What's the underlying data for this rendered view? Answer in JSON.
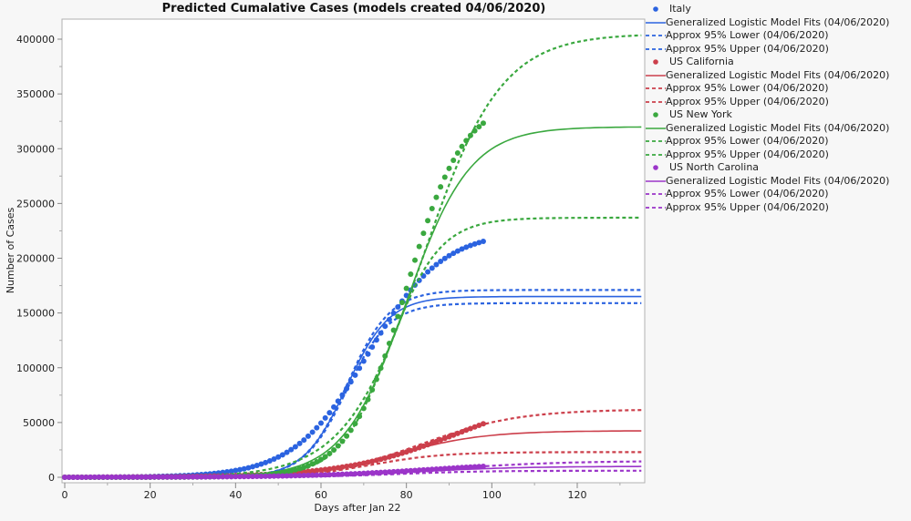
{
  "chart_data": {
    "type": "line",
    "title": "Predicted Cumalative Cases (models created 04/06/2020)",
    "xlabel": "Days after Jan 22",
    "ylabel": "Number of Cases",
    "xlim": [
      -1,
      135
    ],
    "ylim": [
      -5000,
      418000
    ],
    "xticks": [
      "0",
      "20",
      "40",
      "60",
      "80",
      "100",
      "120"
    ],
    "xtick_values": [
      0,
      20,
      40,
      60,
      80,
      100,
      120
    ],
    "yticks": [
      "0",
      "50000",
      "100000",
      "150000",
      "200000",
      "250000",
      "300000",
      "350000",
      "400000"
    ],
    "ytick_values": [
      0,
      50000,
      100000,
      150000,
      200000,
      250000,
      300000,
      350000,
      400000
    ],
    "grid": false,
    "legend_position": "right",
    "observed_days": [
      0,
      98
    ],
    "fit_days": [
      0,
      135
    ],
    "series": [
      {
        "name": "Italy",
        "color": "#2b63e0",
        "observed": {
          "K": 225000,
          "r": 0.115,
          "t0": 71
        },
        "fit": {
          "K": 165000,
          "r": 0.2,
          "t0": 66
        },
        "lower": {
          "K": 159000,
          "r": 0.2,
          "t0": 66
        },
        "upper": {
          "K": 171000,
          "r": 0.2,
          "t0": 66.2
        },
        "legend": {
          "points": "Italy",
          "fit": "Generalized Logistic Model Fits (04/06/2020)",
          "lower": "Approx 95% Lower (04/06/2020)",
          "upper": "Approx 95% Upper (04/06/2020)"
        }
      },
      {
        "name": "US California",
        "color": "#cc3f4b",
        "observed": {
          "K": 80000,
          "r": 0.075,
          "t0": 92
        },
        "fit": {
          "K": 42500,
          "r": 0.1,
          "t0": 78
        },
        "lower": {
          "K": 23000,
          "r": 0.12,
          "t0": 72
        },
        "upper": {
          "K": 62000,
          "r": 0.09,
          "t0": 84
        },
        "legend": {
          "points": "US California",
          "fit": "Generalized Logistic Model Fits (04/06/2020)",
          "lower": "Approx 95% Lower (04/06/2020)",
          "upper": "Approx 95% Upper (04/06/2020)"
        }
      },
      {
        "name": "US New York",
        "color": "#3aa83f",
        "observed": {
          "K": 345000,
          "r": 0.15,
          "t0": 80
        },
        "fit": {
          "K": 320000,
          "r": 0.135,
          "t0": 80
        },
        "lower": {
          "K": 237000,
          "r": 0.17,
          "t0": 76
        },
        "upper": {
          "K": 405000,
          "r": 0.11,
          "t0": 84
        },
        "legend": {
          "points": "US New York",
          "fit": "Generalized Logistic Model Fits (04/06/2020)",
          "lower": "Approx 95% Lower (04/06/2020)",
          "upper": "Approx 95% Upper (04/06/2020)"
        }
      },
      {
        "name": "US North Carolina",
        "color": "#9b35c9",
        "observed": {
          "K": 14000,
          "r": 0.07,
          "t0": 85
        },
        "fit": {
          "K": 10000,
          "r": 0.08,
          "t0": 82
        },
        "lower": {
          "K": 6000,
          "r": 0.1,
          "t0": 78
        },
        "upper": {
          "K": 15000,
          "r": 0.07,
          "t0": 88
        },
        "legend": {
          "points": "US North Carolina",
          "fit": "Generalized Logistic Model Fits (04/06/2020)",
          "lower": "Approx 95% Lower (04/06/2020)",
          "upper": "Approx 95% Upper (04/06/2020)"
        }
      }
    ]
  }
}
